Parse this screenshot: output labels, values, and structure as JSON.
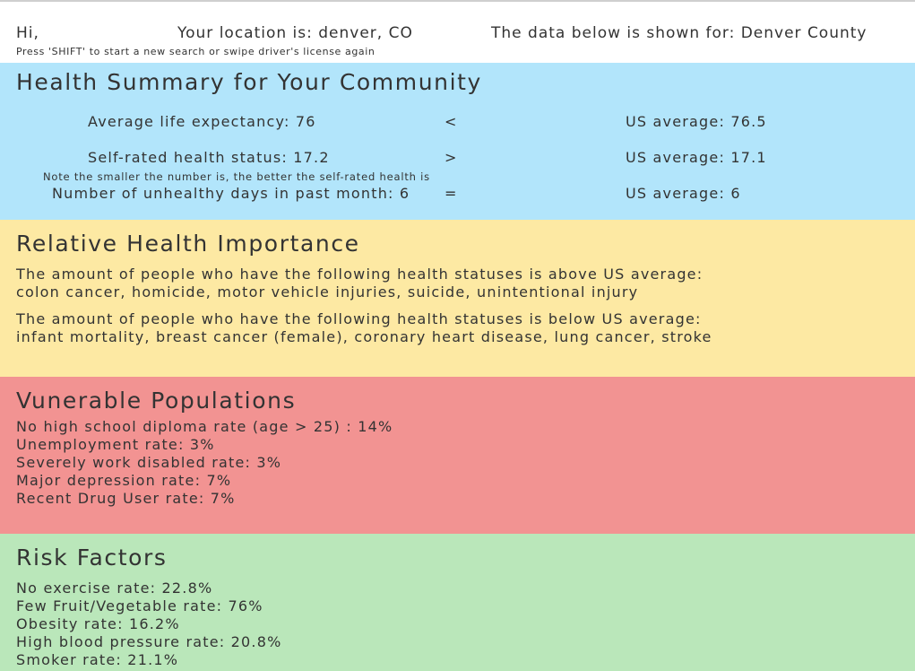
{
  "header": {
    "greeting": "Hi,",
    "location": "Your location is: denver, CO",
    "shown_for": "The data below is shown for: Denver County",
    "hint": "Press 'SHIFT' to start a new search or swipe driver's license again"
  },
  "colors": {
    "summary_bg": "#b2e5fb",
    "importance_bg": "#fde9a3",
    "vulnerable_bg": "#f29392",
    "risk_bg": "#bae7ba"
  },
  "summary": {
    "title": "Health Summary for Your Community",
    "rows": [
      {
        "label": "Average life expectancy: 76",
        "compare": "<",
        "us": "US average: 76.5"
      },
      {
        "label": "Self-rated health status: 17.2",
        "compare": ">",
        "us": "US average: 17.1"
      },
      {
        "label": "Number of unhealthy days in past month: 6",
        "compare": "=",
        "us": "US average: 6"
      }
    ],
    "note": "Note the smaller the number is, the better the self-rated health is"
  },
  "importance": {
    "title": "Relative Health Importance",
    "above_intro": "The amount of people who have the following health statuses is above US average:",
    "above_list": "colon cancer, homicide, motor vehicle injuries, suicide, unintentional injury",
    "below_intro": "The amount of people who have the following health statuses is below US average:",
    "below_list": "infant mortality, breast cancer (female), coronary heart disease, lung cancer, stroke"
  },
  "vulnerable": {
    "title": "Vunerable Populations",
    "items": [
      "No high school diploma rate (age > 25) : 14%",
      "Unemployment rate: 3%",
      "Severely work disabled rate: 3%",
      "Major depression rate: 7%",
      "Recent Drug User rate: 7%"
    ]
  },
  "risk": {
    "title": "Risk Factors",
    "items": [
      "No exercise rate: 22.8%",
      "Few Fruit/Vegetable rate: 76%",
      "Obesity rate: 16.2%",
      "High blood pressure rate: 20.8%",
      "Smoker rate: 21.1%"
    ]
  }
}
